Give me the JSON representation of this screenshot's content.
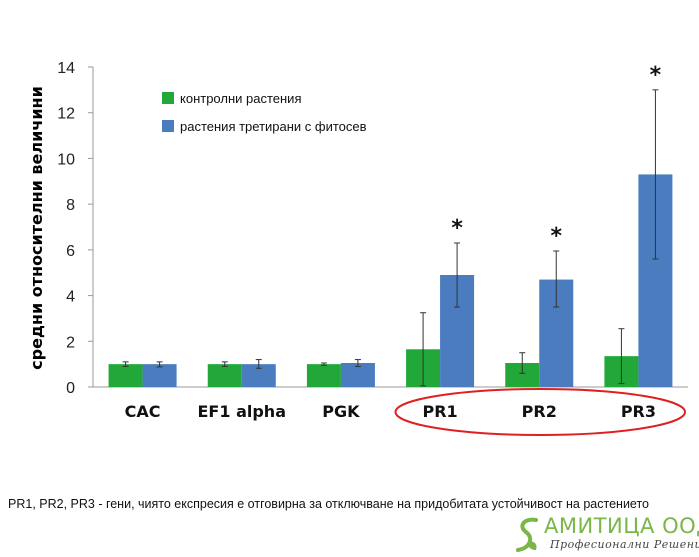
{
  "chart_data": {
    "type": "bar",
    "title": "",
    "ylabel": "средни относителни величини",
    "xlabel": "",
    "ylim": [
      0,
      14
    ],
    "yticks": [
      0,
      2,
      4,
      6,
      8,
      10,
      12,
      14
    ],
    "grid": false,
    "legend_position": "top-left",
    "categories": [
      "CAC",
      "EF1 alpha",
      "PGK",
      "PR1",
      "PR2",
      "PR3"
    ],
    "series": [
      {
        "name": "контролни растения",
        "color": "#21a838",
        "values": [
          1.0,
          1.0,
          1.0,
          1.65,
          1.05,
          1.35
        ],
        "error_low": [
          0.9,
          0.9,
          0.95,
          0.05,
          0.6,
          0.15
        ],
        "error_high": [
          1.1,
          1.1,
          1.05,
          3.25,
          1.5,
          2.55
        ]
      },
      {
        "name": "растения третирани с фитосев",
        "color": "#4a7cbf",
        "values": [
          1.0,
          1.0,
          1.05,
          4.9,
          4.7,
          9.3
        ],
        "error_low": [
          0.88,
          0.82,
          0.9,
          3.5,
          3.5,
          5.6
        ],
        "error_high": [
          1.1,
          1.2,
          1.2,
          6.3,
          5.95,
          13.0
        ]
      }
    ],
    "significance_marker": "*",
    "significant_categories": [
      "PR1",
      "PR2",
      "PR3"
    ],
    "highlight_categories": [
      "PR1",
      "PR2",
      "PR3"
    ],
    "highlight_color": "#e02020"
  },
  "caption": "PR1, PR2, PR3 - гени, чиято експресия е отговирна за отключване на придобитата устойчивост на растението",
  "logo": {
    "name": "АМИТИЦА ООД",
    "tagline": "Професионални Решения",
    "icon": "s-leaf-icon",
    "color": "#7ab648"
  }
}
